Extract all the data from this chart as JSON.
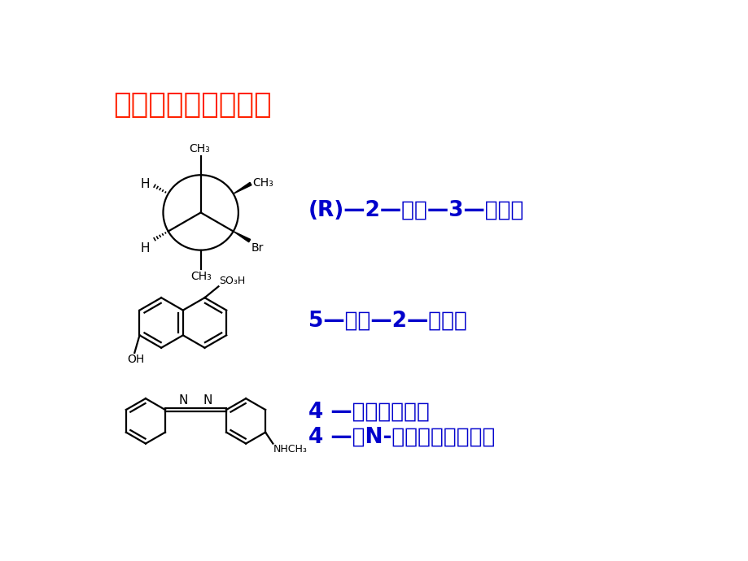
{
  "title": "一、命名或写结构式",
  "title_color": "#FF2200",
  "title_fontsize": 26,
  "label1": "(R)—2—甲基—3—渴丁烷",
  "label2": "5—羟基—2—萌磺酸",
  "label3": "4 —甲氨基偶氮苯",
  "label4": "4 —（N-甲基氨基）偶氮苯",
  "label_color": "#0000CC",
  "label_fontsize": 19,
  "bg_color": "#FFFFFF"
}
